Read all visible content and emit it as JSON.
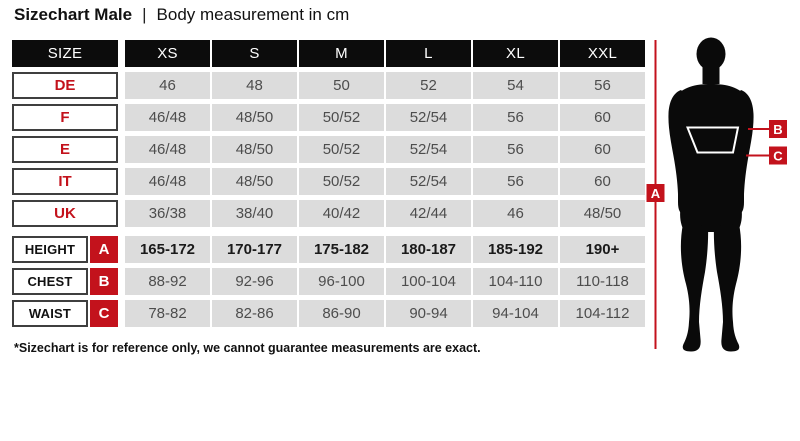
{
  "title": {
    "main": "Sizechart Male",
    "separator": "|",
    "sub": "Body measurement in cm"
  },
  "colors": {
    "red_accent": "#c3121c",
    "header_bg": "#0c0c0c",
    "cell_bg": "#dcdcdc",
    "cell_text": "#4d4d4d",
    "border": "#3f3f3f"
  },
  "table": {
    "size_header": "SIZE",
    "columns": [
      "XS",
      "S",
      "M",
      "L",
      "XL",
      "XXL"
    ],
    "size_rows": [
      {
        "label": "DE",
        "values": [
          "46",
          "48",
          "50",
          "52",
          "54",
          "56"
        ]
      },
      {
        "label": "F",
        "values": [
          "46/48",
          "48/50",
          "50/52",
          "52/54",
          "56",
          "60"
        ]
      },
      {
        "label": "E",
        "values": [
          "46/48",
          "48/50",
          "50/52",
          "52/54",
          "56",
          "60"
        ]
      },
      {
        "label": "IT",
        "values": [
          "46/48",
          "48/50",
          "50/52",
          "52/54",
          "56",
          "60"
        ]
      },
      {
        "label": "UK",
        "values": [
          "36/38",
          "38/40",
          "40/42",
          "42/44",
          "46",
          "48/50"
        ]
      }
    ],
    "measure_rows": [
      {
        "label": "HEIGHT",
        "marker": "A",
        "bold": true,
        "values": [
          "165-172",
          "170-177",
          "175-182",
          "180-187",
          "185-192",
          "190+"
        ]
      },
      {
        "label": "CHEST",
        "marker": "B",
        "bold": false,
        "values": [
          "88-92",
          "92-96",
          "96-100",
          "100-104",
          "104-110",
          "110-118"
        ]
      },
      {
        "label": "WAIST",
        "marker": "C",
        "bold": false,
        "values": [
          "78-82",
          "82-86",
          "86-90",
          "90-94",
          "94-104",
          "104-112"
        ]
      }
    ]
  },
  "figure": {
    "markers": [
      "A",
      "B",
      "C"
    ]
  },
  "footnote": "*Sizechart is for reference only, we cannot guarantee measurements are exact.",
  "chart_data": {
    "type": "table",
    "title": "Sizechart Male | Body measurement in cm",
    "columns": [
      "SIZE",
      "XS",
      "S",
      "M",
      "L",
      "XL",
      "XXL"
    ],
    "rows": [
      [
        "DE",
        "46",
        "48",
        "50",
        "52",
        "54",
        "56"
      ],
      [
        "F",
        "46/48",
        "48/50",
        "50/52",
        "52/54",
        "56",
        "60"
      ],
      [
        "E",
        "46/48",
        "48/50",
        "50/52",
        "52/54",
        "56",
        "60"
      ],
      [
        "IT",
        "46/48",
        "48/50",
        "50/52",
        "52/54",
        "56",
        "60"
      ],
      [
        "UK",
        "36/38",
        "38/40",
        "40/42",
        "42/44",
        "46",
        "48/50"
      ],
      [
        "HEIGHT (A)",
        "165-172",
        "170-177",
        "175-182",
        "180-187",
        "185-192",
        "190+"
      ],
      [
        "CHEST (B)",
        "88-92",
        "92-96",
        "96-100",
        "100-104",
        "104-110",
        "110-118"
      ],
      [
        "WAIST (C)",
        "78-82",
        "82-86",
        "86-90",
        "90-94",
        "94-104",
        "104-112"
      ]
    ],
    "footnote": "*Sizechart is for reference only, we cannot guarantee measurements are exact."
  }
}
